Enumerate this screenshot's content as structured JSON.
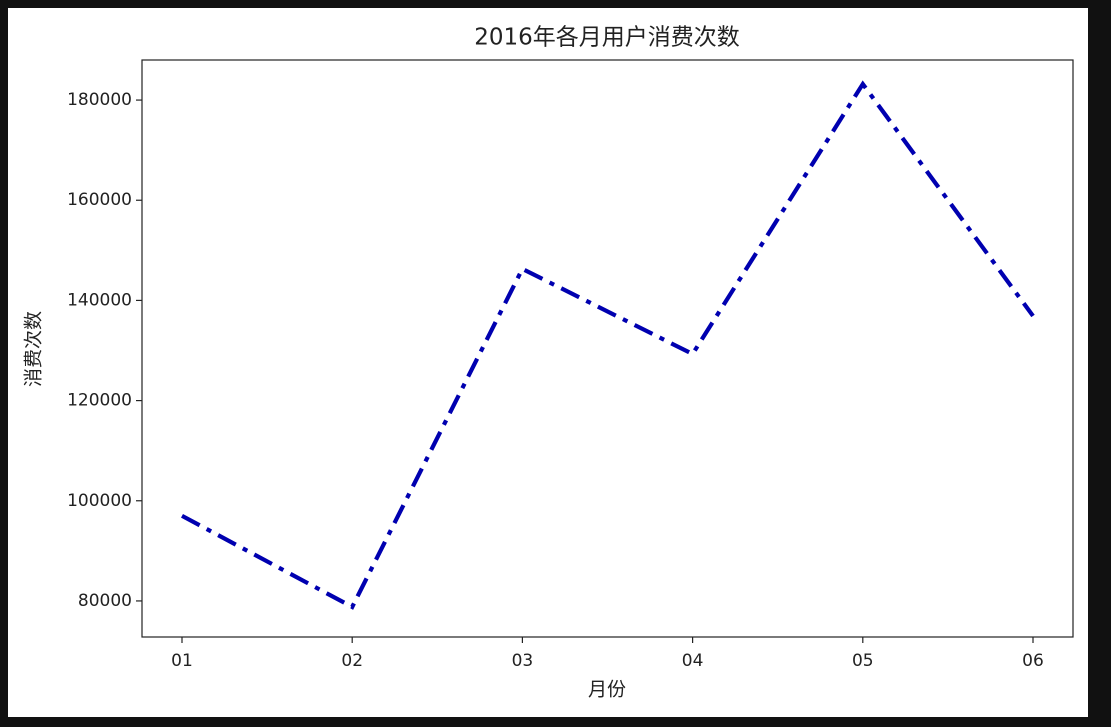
{
  "chart_data": {
    "type": "line",
    "title": "2016年各月用户消费次数",
    "x_label": "月份",
    "y_label": "消费次数",
    "categories": [
      "01",
      "02",
      "03",
      "04",
      "05",
      "06"
    ],
    "series": [
      {
        "name": "消费次数",
        "color": "#0000b0",
        "values": [
          97000,
          78800,
          146300,
          129300,
          183200,
          136900
        ]
      }
    ],
    "ylim": [
      72800,
      188000
    ],
    "yticks": [
      80000,
      100000,
      120000,
      140000,
      160000,
      180000
    ],
    "grid": false,
    "line_style": "dashdot",
    "legend": false
  }
}
